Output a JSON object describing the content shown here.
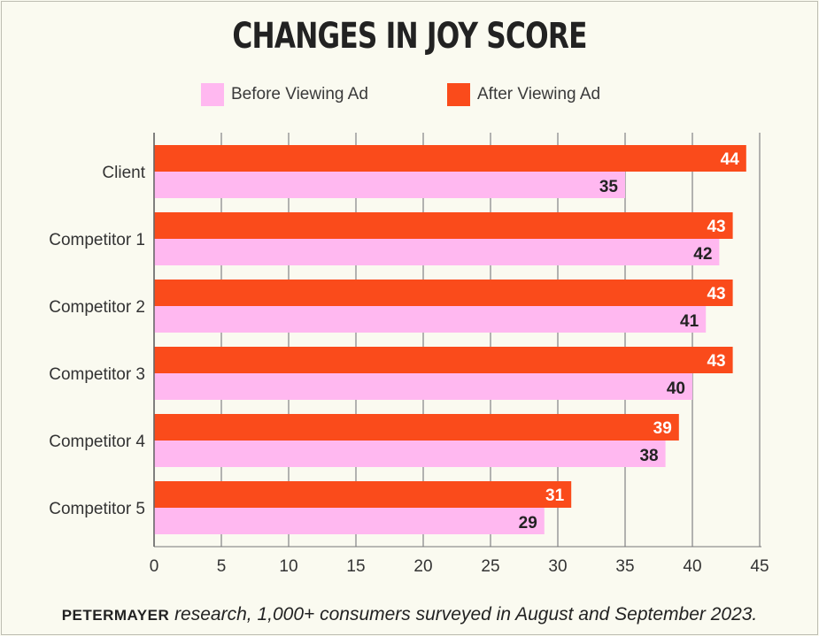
{
  "title": "CHANGES IN JOY SCORE",
  "colors": {
    "before": "#ffb8f0",
    "after": "#fa4b1b",
    "grid": "#9a9a9a",
    "background": "#fafaf0"
  },
  "legend": {
    "before_label": "Before Viewing Ad",
    "after_label": "After Viewing Ad"
  },
  "footer": {
    "brand": "PETERMAYER",
    "text": " research, 1,000+ consumers surveyed in August and September 2023."
  },
  "chart_data": {
    "type": "bar",
    "orientation": "horizontal",
    "title": "CHANGES IN JOY SCORE",
    "categories": [
      "Client",
      "Competitor 1",
      "Competitor 2",
      "Competitor 3",
      "Competitor 4",
      "Competitor 5"
    ],
    "series": [
      {
        "name": "After Viewing Ad",
        "values": [
          44,
          43,
          43,
          43,
          39,
          31
        ]
      },
      {
        "name": "Before Viewing Ad",
        "values": [
          35,
          42,
          41,
          40,
          38,
          29
        ]
      }
    ],
    "xlim": [
      0,
      45
    ],
    "xticks": [
      0,
      5,
      10,
      15,
      20,
      25,
      30,
      35,
      40,
      45
    ],
    "grid": true,
    "legend_position": "top"
  }
}
